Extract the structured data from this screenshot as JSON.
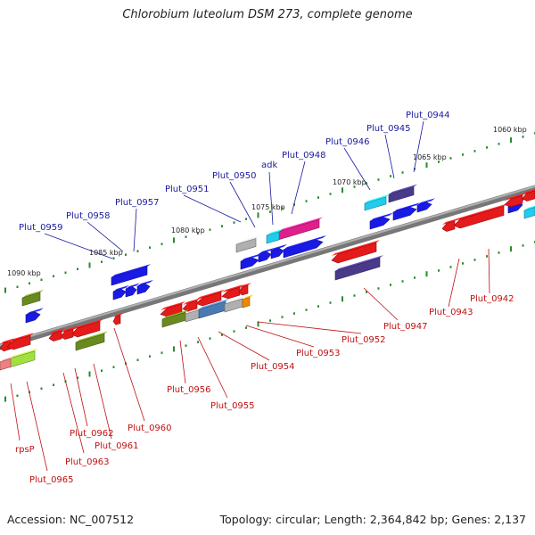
{
  "title": "Chlorobium luteolum DSM 273, complete genome",
  "footer": {
    "accession": "Accession: NC_007512",
    "topology": "Topology: circular; Length: 2,364,842 bp; Genes: 2,137"
  },
  "scale_ticks": [
    {
      "label": "1060 kbp"
    },
    {
      "label": "1065 kbp"
    },
    {
      "label": "1070 kbp"
    },
    {
      "label": "1075 kbp"
    },
    {
      "label": "1080 kbp"
    },
    {
      "label": "1085 kbp"
    },
    {
      "label": "1090 kbp"
    }
  ],
  "gene_labels_top": [
    {
      "label": "Plut_0944"
    },
    {
      "label": "Plut_0945"
    },
    {
      "label": "Plut_0946"
    },
    {
      "label": "Plut_0948"
    },
    {
      "label": "adk"
    },
    {
      "label": "Plut_0950"
    },
    {
      "label": "Plut_0951"
    },
    {
      "label": "Plut_0957"
    },
    {
      "label": "Plut_0958"
    },
    {
      "label": "Plut_0959"
    }
  ],
  "gene_labels_bottom": [
    {
      "label": "Plut_0942"
    },
    {
      "label": "Plut_0943"
    },
    {
      "label": "Plut_0947"
    },
    {
      "label": "Plut_0952"
    },
    {
      "label": "Plut_0953"
    },
    {
      "label": "Plut_0954"
    },
    {
      "label": "Plut_0955"
    },
    {
      "label": "Plut_0956"
    },
    {
      "label": "Plut_0960"
    },
    {
      "label": "Plut_0961"
    },
    {
      "label": "Plut_0962"
    },
    {
      "label": "Plut_0963"
    },
    {
      "label": "rpsP"
    },
    {
      "label": "Plut_0965"
    }
  ],
  "colors": {
    "forward_gene": "#1a1ae6",
    "reverse_gene": "#e61a1a",
    "cyan_gene": "#22ccee",
    "pink_gene": "#e0208a",
    "purple_gene": "#4a3a8a",
    "olive_gene": "#6a8a20",
    "grey_gene": "#b0b0b0",
    "steel_gene": "#4a7ab0",
    "orange_gene": "#ee8800",
    "lime_gene": "#a0e040",
    "salmon_gene": "#f08080",
    "label_top": "#1a1aa0",
    "label_bottom": "#c01010",
    "tick": "#2a8a2a",
    "backbone": "#808080"
  }
}
